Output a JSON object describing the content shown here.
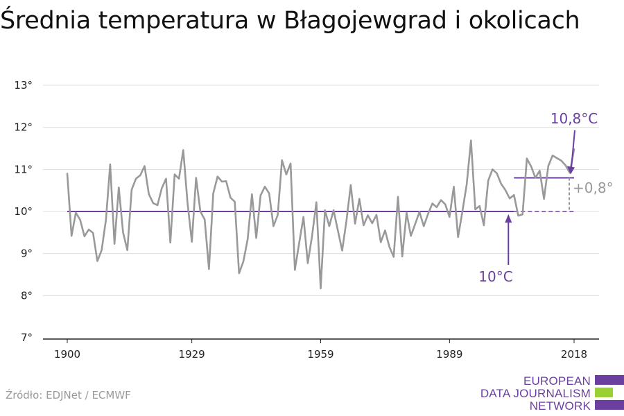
{
  "chart_data": {
    "type": "line",
    "title": "Średnia temperatura w Błagojewgrad i okolicach",
    "xlim": [
      1900,
      2018
    ],
    "ylim": [
      7,
      13
    ],
    "x_ticks": [
      1900,
      1929,
      1959,
      1989,
      2018
    ],
    "y_ticks": [
      {
        "value": 7,
        "label": "7°"
      },
      {
        "value": 8,
        "label": "8°"
      },
      {
        "value": 9,
        "label": "9°"
      },
      {
        "value": 10,
        "label": "10°"
      },
      {
        "value": 11,
        "label": "11°"
      },
      {
        "value": 12,
        "label": "12°"
      },
      {
        "value": 13,
        "label": "13°"
      }
    ],
    "grid": true,
    "series": [
      {
        "color": "#999999",
        "x": [
          1900,
          1901,
          1902,
          1903,
          1904,
          1905,
          1906,
          1907,
          1908,
          1909,
          1910,
          1911,
          1912,
          1913,
          1914,
          1915,
          1916,
          1917,
          1918,
          1919,
          1920,
          1921,
          1922,
          1923,
          1924,
          1925,
          1926,
          1927,
          1928,
          1929,
          1930,
          1931,
          1932,
          1933,
          1934,
          1935,
          1936,
          1937,
          1938,
          1939,
          1940,
          1941,
          1942,
          1943,
          1944,
          1945,
          1946,
          1947,
          1948,
          1949,
          1950,
          1951,
          1952,
          1953,
          1954,
          1955,
          1956,
          1957,
          1958,
          1959,
          1960,
          1961,
          1962,
          1963,
          1964,
          1965,
          1966,
          1967,
          1968,
          1969,
          1970,
          1971,
          1972,
          1973,
          1974,
          1975,
          1976,
          1977,
          1978,
          1979,
          1980,
          1981,
          1982,
          1983,
          1984,
          1985,
          1986,
          1987,
          1988,
          1989,
          1990,
          1991,
          1992,
          1993,
          1994,
          1995,
          1996,
          1997,
          1998,
          1999,
          2000,
          2001,
          2002,
          2003,
          2004,
          2005,
          2006,
          2007,
          2008,
          2009,
          2010,
          2011,
          2012,
          2013,
          2014,
          2015,
          2016,
          2017,
          2018
        ],
        "values": [
          10.9,
          9.42,
          9.97,
          9.8,
          9.41,
          9.57,
          9.49,
          8.82,
          9.08,
          9.8,
          11.12,
          9.23,
          10.57,
          9.5,
          9.08,
          10.52,
          10.78,
          10.86,
          11.08,
          10.41,
          10.2,
          10.15,
          10.55,
          10.78,
          9.26,
          10.88,
          10.78,
          11.46,
          10.2,
          9.28,
          10.8,
          10.0,
          9.81,
          8.63,
          10.43,
          10.83,
          10.71,
          10.72,
          10.33,
          10.23,
          8.53,
          8.81,
          9.34,
          10.41,
          9.37,
          10.38,
          10.59,
          10.43,
          9.65,
          9.92,
          11.22,
          10.88,
          11.14,
          8.61,
          9.25,
          9.87,
          8.77,
          9.42,
          10.22,
          8.17,
          10.03,
          9.65,
          10.03,
          9.55,
          9.07,
          9.78,
          10.63,
          9.71,
          10.3,
          9.67,
          9.91,
          9.72,
          9.92,
          9.27,
          9.55,
          9.16,
          8.92,
          10.35,
          8.93,
          9.97,
          9.42,
          9.7,
          9.99,
          9.65,
          9.94,
          10.19,
          10.1,
          10.27,
          10.17,
          9.87,
          10.59,
          9.39,
          10.0,
          10.64,
          11.69,
          10.05,
          10.13,
          9.67,
          10.73,
          11.0,
          10.91,
          10.66,
          10.51,
          10.31,
          10.39,
          9.9,
          9.93,
          11.26,
          11.07,
          10.8,
          10.97,
          10.3,
          11.08,
          11.33,
          11.27,
          11.21,
          11.1,
          10.92,
          11.48
        ]
      }
    ],
    "reference_lines": [
      {
        "label": "10°C",
        "value": 10.0,
        "from": 1900,
        "to": 2004,
        "color": "#6a3fa0"
      },
      {
        "label": "10,8°C",
        "value": 10.8,
        "from": 2004,
        "to": 2018,
        "color": "#6a3fa0"
      }
    ],
    "difference_label": "+0,8°",
    "colors": {
      "series": "#999999",
      "reference": "#6a3fa0",
      "grid": "#dddddd",
      "axis": "#222222",
      "difference": "#999999"
    }
  },
  "source": "Źródło: EDJNet / ECMWF",
  "logo": {
    "lines": [
      "EUROPEAN",
      "DATA JOURNALISM",
      "NETWORK"
    ],
    "colors": {
      "text": "#6a3fa0",
      "bar_top": "#6a3fa0",
      "bar_middle": "#9bd034",
      "bar_bottom": "#6a3fa0"
    }
  }
}
